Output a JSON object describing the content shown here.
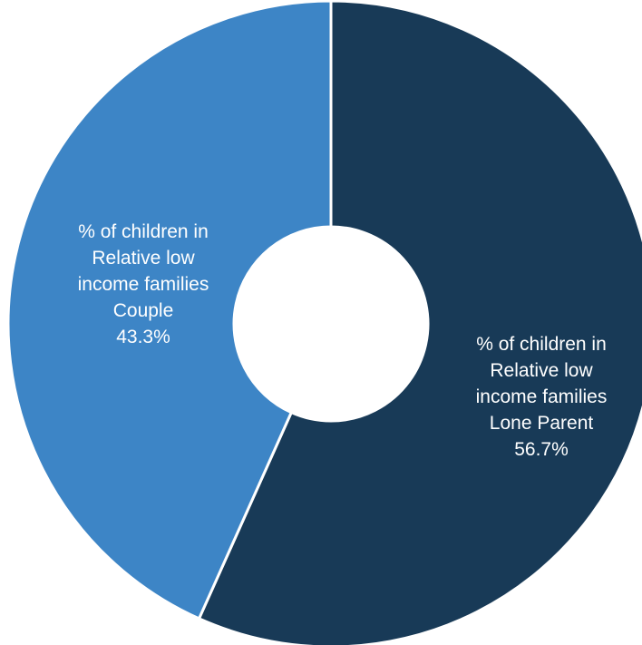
{
  "chart_data": {
    "type": "pie",
    "variant": "donut",
    "title": "",
    "slices": [
      {
        "label_lines": [
          "% of children in",
          "Relative low",
          "income families",
          "Lone Parent"
        ],
        "value": 56.7,
        "value_label": "56.7%",
        "color": "#183a57"
      },
      {
        "label_lines": [
          "% of children in",
          "Relative low",
          "income families",
          "Couple"
        ],
        "value": 43.3,
        "value_label": "43.3%",
        "color": "#3d85c6"
      }
    ],
    "start_angle": "12 o'clock",
    "direction": "clockwise",
    "legend": "none",
    "labels_position": "inside slices"
  }
}
